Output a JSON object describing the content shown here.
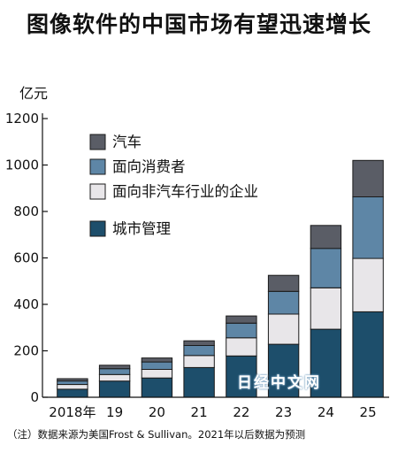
{
  "title": "图像软件的中国市场有望迅速增长",
  "unit_label": "亿元",
  "footnote": "（注）数据来源为美国Frost & Sullivan。2021年以后数据为预测",
  "watermark": "日经中文网",
  "chart_data": {
    "type": "bar",
    "stacked": true,
    "categories": [
      "2018年",
      "19",
      "20",
      "21",
      "22",
      "23",
      "24",
      "25"
    ],
    "ylim": [
      0,
      1200
    ],
    "yticks": [
      0,
      200,
      400,
      600,
      800,
      1000,
      1200
    ],
    "ylabel": "亿元",
    "grid": false,
    "legend_position": "top-left",
    "series": [
      {
        "name": "城市管理",
        "color": "#1d4e6b",
        "values": [
          35,
          70,
          83,
          128,
          178,
          228,
          293,
          368
        ]
      },
      {
        "name": "面向非汽车行业的企业",
        "color": "#e8e6e9",
        "values": [
          20,
          28,
          37,
          52,
          78,
          130,
          178,
          230
        ]
      },
      {
        "name": "面向消费者",
        "color": "#5e86a6",
        "values": [
          15,
          25,
          32,
          43,
          63,
          98,
          170,
          265
        ]
      },
      {
        "name": "汽车",
        "color": "#5a5d66",
        "values": [
          10,
          15,
          17,
          20,
          31,
          69,
          99,
          157
        ]
      }
    ],
    "legend_order": [
      "汽车",
      "面向消费者",
      "面向非汽车行业的企业",
      "城市管理"
    ]
  }
}
